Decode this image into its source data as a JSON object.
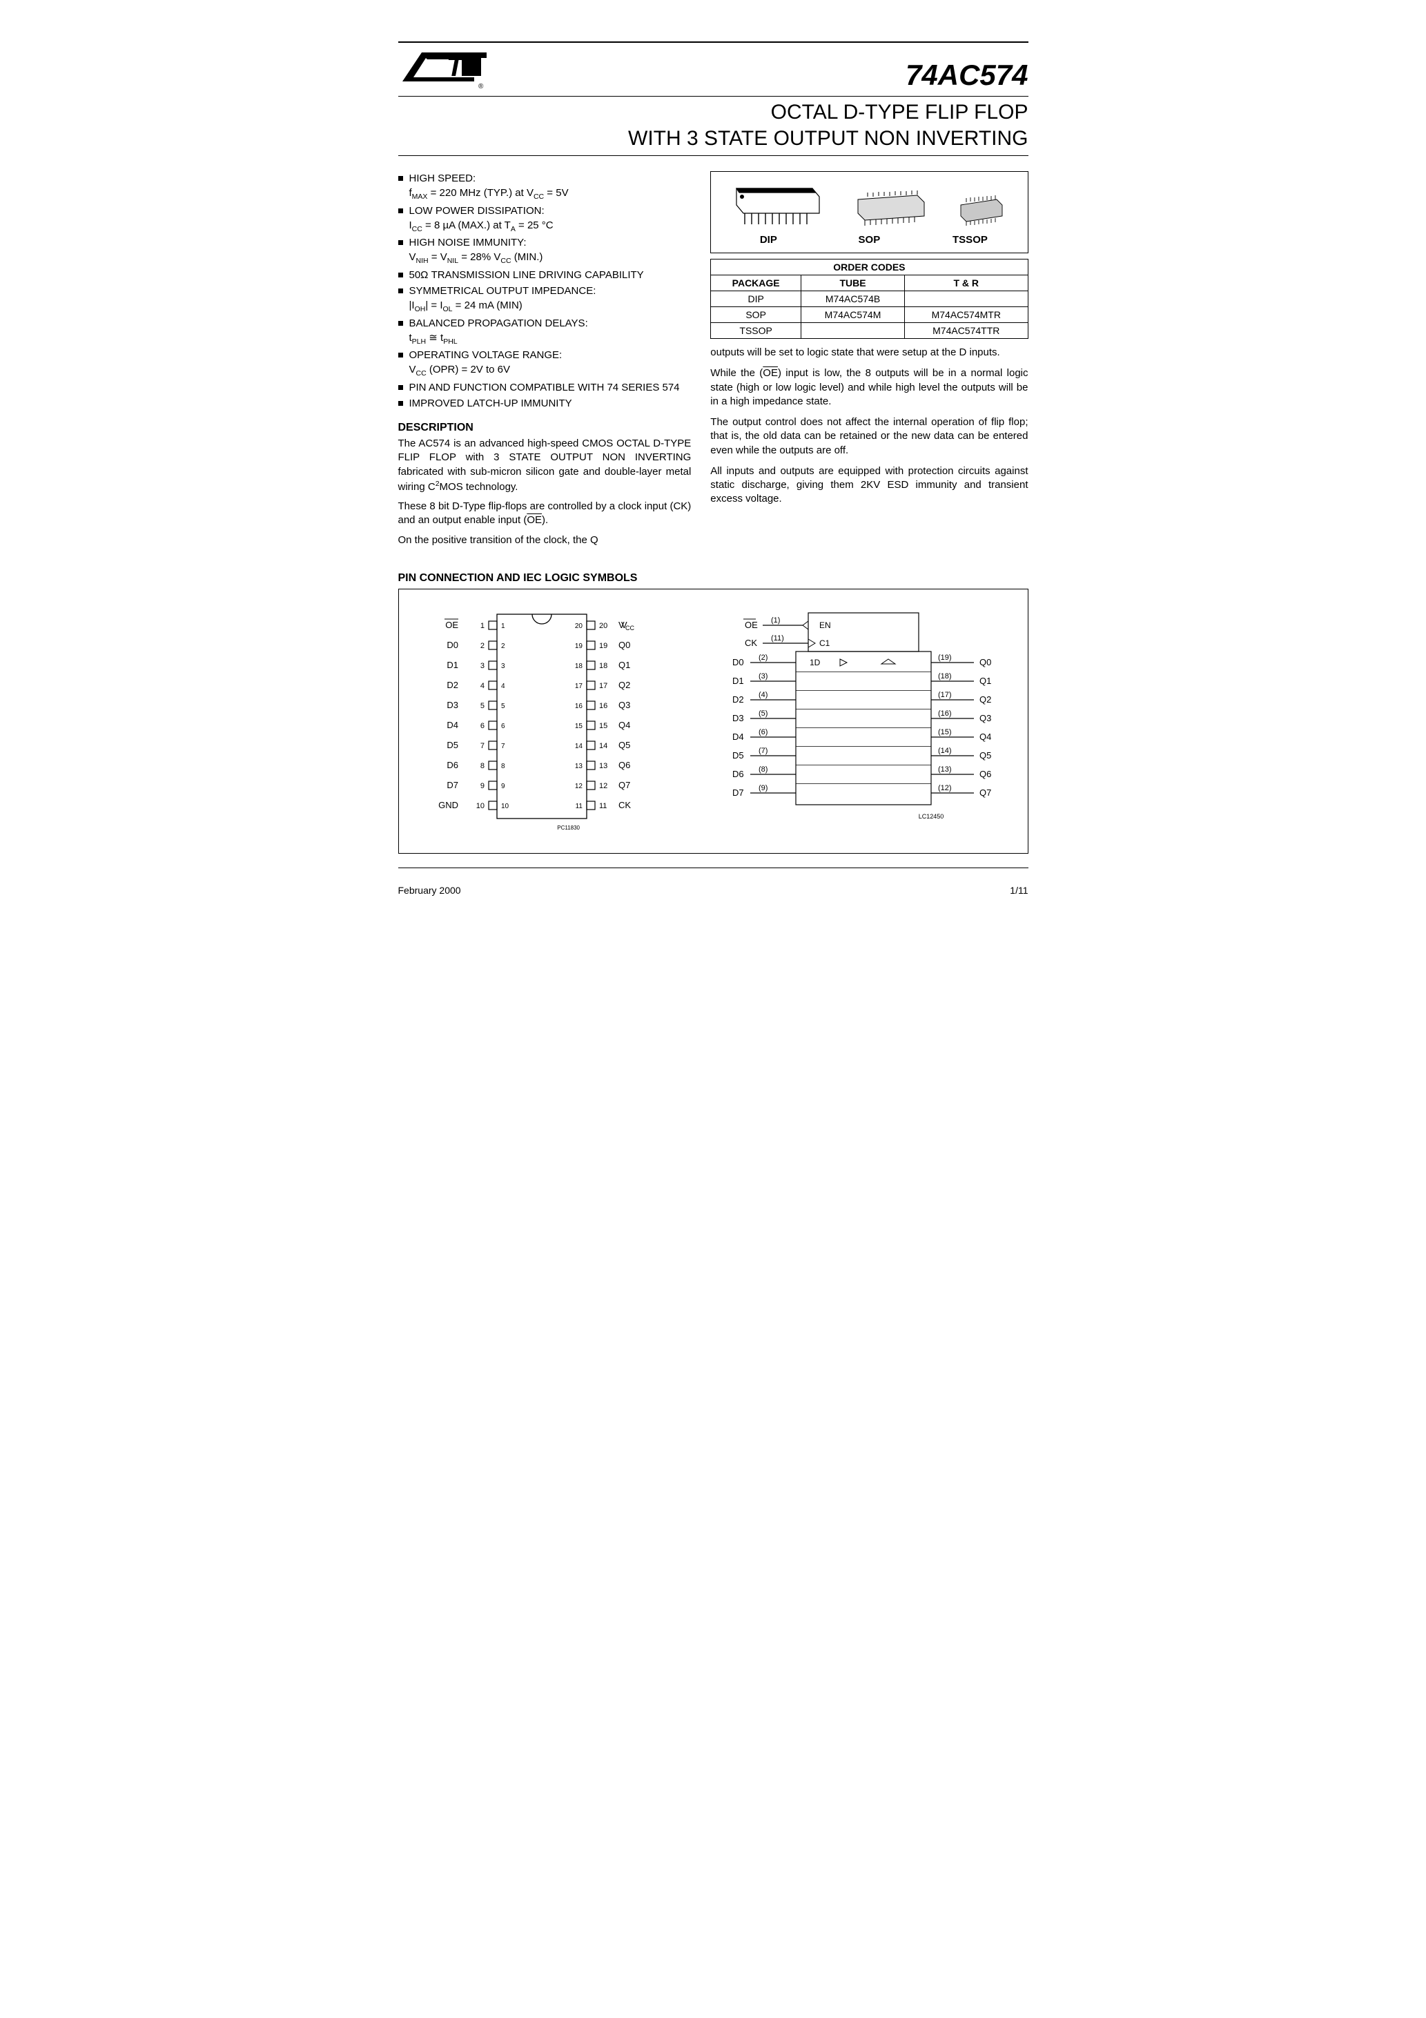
{
  "header": {
    "part_number": "74AC574",
    "title_line1": "OCTAL D-TYPE FLIP FLOP",
    "title_line2": "WITH 3 STATE OUTPUT NON INVERTING"
  },
  "features": [
    {
      "main": "HIGH SPEED:",
      "sub": "f<sub>MAX</sub> = 220 MHz (TYP.) at V<sub>CC</sub> = 5V"
    },
    {
      "main": "LOW POWER DISSIPATION:",
      "sub": "I<sub>CC</sub> = 8 µA (MAX.) at T<sub>A</sub> = 25 °C"
    },
    {
      "main": "HIGH NOISE IMMUNITY:",
      "sub": "V<sub>NIH</sub> = V<sub>NIL</sub> = 28% V<sub>CC</sub> (MIN.)"
    },
    {
      "main": "50Ω TRANSMISSION LINE DRIVING CAPABILITY",
      "sub": ""
    },
    {
      "main": "SYMMETRICAL OUTPUT IMPEDANCE:",
      "sub": "|I<sub>OH</sub>| = I<sub>OL</sub> = 24 mA (MIN)"
    },
    {
      "main": "BALANCED PROPAGATION DELAYS:",
      "sub": "t<sub>PLH</sub> ≅ t<sub>PHL</sub>"
    },
    {
      "main": "OPERATING VOLTAGE RANGE:",
      "sub": "V<sub>CC</sub> (OPR) = 2V to 6V"
    },
    {
      "main": "PIN AND FUNCTION COMPATIBLE WITH 74 SERIES 574",
      "sub": ""
    },
    {
      "main": "IMPROVED LATCH-UP IMMUNITY",
      "sub": ""
    }
  ],
  "description": {
    "heading": "DESCRIPTION",
    "p1": "The AC574 is an advanced high-speed CMOS OCTAL D-TYPE FLIP FLOP with 3 STATE OUTPUT NON INVERTING fabricated with sub-micron silicon gate and double-layer metal wiring C<sup>2</sup>MOS technology.",
    "p2": "These 8 bit D-Type flip-flops are controlled by a clock input (CK) and an output enable input (<span class=\"overline\">OE</span>).",
    "p3": "On the positive transition of the clock, the Q"
  },
  "packages": {
    "labels": [
      "DIP",
      "SOP",
      "TSSOP"
    ],
    "order_codes_title": "ORDER CODES",
    "columns": [
      "PACKAGE",
      "TUBE",
      "T & R"
    ],
    "rows": [
      [
        "DIP",
        "M74AC574B",
        ""
      ],
      [
        "SOP",
        "M74AC574M",
        "M74AC574MTR"
      ],
      [
        "TSSOP",
        "",
        "M74AC574TTR"
      ]
    ]
  },
  "right_text": {
    "p1": "outputs will be set to logic state that were setup at the D inputs.",
    "p2": "While the (<span class=\"overline\">OE</span>) input is low, the 8 outputs will be in a normal logic state (high or low logic level) and while high level the outputs will be in a high impedance state.",
    "p3": "The output control does not affect the internal operation of flip flop; that is, the old data can be retained or the new data can be entered even while the outputs are off.",
    "p4": "All inputs and outputs are equipped with protection circuits against static discharge, giving them 2KV ESD immunity and transient excess voltage."
  },
  "pin_section": {
    "heading": "PIN CONNECTION AND IEC LOGIC SYMBOLS",
    "pinout": {
      "left": [
        {
          "num": "1",
          "name": "OE",
          "overline": true
        },
        {
          "num": "2",
          "name": "D0"
        },
        {
          "num": "3",
          "name": "D1"
        },
        {
          "num": "4",
          "name": "D2"
        },
        {
          "num": "5",
          "name": "D3"
        },
        {
          "num": "6",
          "name": "D4"
        },
        {
          "num": "7",
          "name": "D5"
        },
        {
          "num": "8",
          "name": "D6"
        },
        {
          "num": "9",
          "name": "D7"
        },
        {
          "num": "10",
          "name": "GND"
        }
      ],
      "right": [
        {
          "num": "20",
          "name": "VCC"
        },
        {
          "num": "19",
          "name": "Q0"
        },
        {
          "num": "18",
          "name": "Q1"
        },
        {
          "num": "17",
          "name": "Q2"
        },
        {
          "num": "16",
          "name": "Q3"
        },
        {
          "num": "15",
          "name": "Q4"
        },
        {
          "num": "14",
          "name": "Q5"
        },
        {
          "num": "13",
          "name": "Q6"
        },
        {
          "num": "12",
          "name": "Q7"
        },
        {
          "num": "11",
          "name": "CK"
        }
      ],
      "ref": "PC11830"
    },
    "iec": {
      "top_labels": [
        {
          "name": "OE",
          "pin": "(1)",
          "overline": true,
          "sym": "EN"
        },
        {
          "name": "CK",
          "pin": "(11)",
          "sym": "C1"
        }
      ],
      "body_header": "1D",
      "rows": [
        {
          "l": "D0",
          "lp": "(2)",
          "rp": "(19)",
          "r": "Q0"
        },
        {
          "l": "D1",
          "lp": "(3)",
          "rp": "(18)",
          "r": "Q1"
        },
        {
          "l": "D2",
          "lp": "(4)",
          "rp": "(17)",
          "r": "Q2"
        },
        {
          "l": "D3",
          "lp": "(5)",
          "rp": "(16)",
          "r": "Q3"
        },
        {
          "l": "D4",
          "lp": "(6)",
          "rp": "(15)",
          "r": "Q4"
        },
        {
          "l": "D5",
          "lp": "(7)",
          "rp": "(14)",
          "r": "Q5"
        },
        {
          "l": "D6",
          "lp": "(8)",
          "rp": "(13)",
          "r": "Q6"
        },
        {
          "l": "D7",
          "lp": "(9)",
          "rp": "(12)",
          "r": "Q7"
        }
      ],
      "ref": "LC12450"
    }
  },
  "footer": {
    "date": "February 2000",
    "page": "1/11"
  },
  "colors": {
    "line": "#000000",
    "bg": "#ffffff"
  }
}
